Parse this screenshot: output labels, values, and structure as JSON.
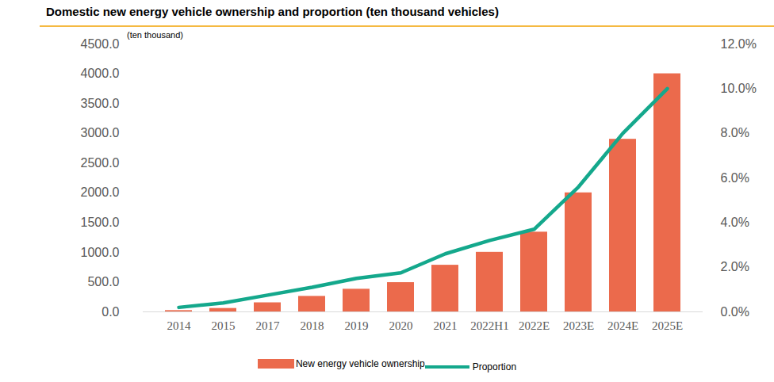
{
  "chart_data": {
    "type": "bar",
    "title": "Domestic new energy vehicle ownership and proportion (ten thousand vehicles)",
    "y_label": "(ten thousand)",
    "categories": [
      "2014",
      "2015",
      "2017",
      "2018",
      "2019",
      "2020",
      "2021",
      "2022H1",
      "2022E",
      "2023E",
      "2024E",
      "2025E"
    ],
    "series": [
      {
        "name": "New energy vehicle ownership",
        "type": "bar",
        "color": "#EB6A4C",
        "values": [
          22,
          58,
          153,
          261,
          381,
          492,
          784,
          1001,
          1340,
          2000,
          2900,
          4000
        ]
      },
      {
        "name": "Proportion",
        "type": "line",
        "axis": "y2",
        "color": "#14A88C",
        "values": [
          0.2,
          0.4,
          0.75,
          1.1,
          1.5,
          1.75,
          2.6,
          3.2,
          3.7,
          5.6,
          8.0,
          10.0
        ]
      }
    ],
    "ylim": [
      0,
      4500
    ],
    "yticks": [
      {
        "value": 0,
        "label": "0.0"
      },
      {
        "value": 500,
        "label": "500.0"
      },
      {
        "value": 1000,
        "label": "1000.0"
      },
      {
        "value": 1500,
        "label": "1500.0"
      },
      {
        "value": 2000,
        "label": "2000.0"
      },
      {
        "value": 2500,
        "label": "2500.0"
      },
      {
        "value": 3000,
        "label": "3000.0"
      },
      {
        "value": 3500,
        "label": "3500.0"
      },
      {
        "value": 4000,
        "label": "4000.0"
      },
      {
        "value": 4500,
        "label": "4500.0"
      }
    ],
    "y2lim": [
      0,
      12
    ],
    "y2ticks": [
      {
        "value": 0,
        "label": "0.0%"
      },
      {
        "value": 2,
        "label": "2.0%"
      },
      {
        "value": 4,
        "label": "4.0%"
      },
      {
        "value": 6,
        "label": "6.0%"
      },
      {
        "value": 8,
        "label": "8.0%"
      },
      {
        "value": 10,
        "label": "10.0%"
      },
      {
        "value": 12,
        "label": "12.0%"
      }
    ],
    "grid": false,
    "legend": "bottom"
  }
}
